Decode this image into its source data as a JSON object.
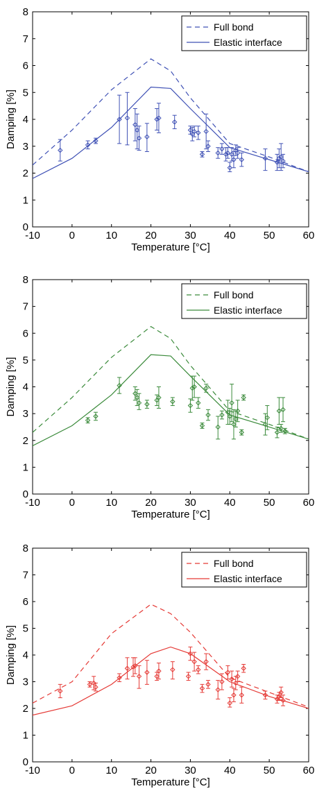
{
  "chart_data": [
    {
      "type": "line",
      "color": "#3f51b5",
      "xlabel": "Temperature [°C]",
      "ylabel": "Damping [%]",
      "xlim": [
        -10,
        60
      ],
      "ylim": [
        0,
        8
      ],
      "xticks": [
        -10,
        0,
        10,
        20,
        30,
        40,
        50,
        60
      ],
      "yticks": [
        0,
        1,
        2,
        3,
        4,
        5,
        6,
        7,
        8
      ],
      "legend_position": "top-right",
      "series": [
        {
          "name": "Full bond",
          "style": "dashed",
          "x": [
            -10,
            0,
            10,
            20,
            25,
            30,
            40,
            50,
            60
          ],
          "y": [
            2.3,
            3.6,
            5.1,
            6.25,
            5.8,
            4.8,
            3.1,
            2.6,
            2.05
          ]
        },
        {
          "name": "Elastic interface",
          "style": "solid",
          "x": [
            -10,
            0,
            10,
            20,
            25,
            30,
            40,
            50,
            60
          ],
          "y": [
            1.8,
            2.55,
            3.7,
            5.2,
            5.15,
            4.4,
            2.95,
            2.5,
            2.05
          ]
        }
      ],
      "measurements": [
        {
          "x": -3,
          "y": 2.85,
          "lo": 2.45,
          "hi": 3.25
        },
        {
          "x": 4,
          "y": 3.05,
          "lo": 2.9,
          "hi": 3.2
        },
        {
          "x": 6,
          "y": 3.2,
          "lo": 3.1,
          "hi": 3.3
        },
        {
          "x": 12,
          "y": 4.0,
          "lo": 3.1,
          "hi": 4.9
        },
        {
          "x": 14,
          "y": 4.05,
          "lo": 3.05,
          "hi": 5.0
        },
        {
          "x": 16,
          "y": 3.8,
          "lo": 3.2,
          "hi": 4.4
        },
        {
          "x": 16.5,
          "y": 3.6,
          "lo": 2.9,
          "hi": 4.2
        },
        {
          "x": 17,
          "y": 3.3,
          "lo": 2.85,
          "hi": 3.75
        },
        {
          "x": 19,
          "y": 3.35,
          "lo": 2.8,
          "hi": 3.85
        },
        {
          "x": 21.5,
          "y": 4.0,
          "lo": 3.6,
          "hi": 4.4
        },
        {
          "x": 22,
          "y": 4.05,
          "lo": 3.5,
          "hi": 4.6
        },
        {
          "x": 26,
          "y": 3.9,
          "lo": 3.65,
          "hi": 4.15
        },
        {
          "x": 30,
          "y": 3.6,
          "lo": 3.45,
          "hi": 3.75
        },
        {
          "x": 30.5,
          "y": 3.45,
          "lo": 3.2,
          "hi": 3.7
        },
        {
          "x": 31,
          "y": 3.55,
          "lo": 3.35,
          "hi": 3.75
        },
        {
          "x": 32,
          "y": 3.5,
          "lo": 3.25,
          "hi": 3.75
        },
        {
          "x": 33,
          "y": 2.7,
          "lo": 2.6,
          "hi": 2.8
        },
        {
          "x": 34,
          "y": 3.55,
          "lo": 2.9,
          "hi": 4.2
        },
        {
          "x": 34.5,
          "y": 3.0,
          "lo": 2.8,
          "hi": 3.2
        },
        {
          "x": 37,
          "y": 2.75,
          "lo": 2.55,
          "hi": 2.95
        },
        {
          "x": 38,
          "y": 2.9,
          "lo": 2.7,
          "hi": 3.1
        },
        {
          "x": 39,
          "y": 2.7,
          "lo": 2.45,
          "hi": 2.95
        },
        {
          "x": 39.5,
          "y": 2.75,
          "lo": 2.55,
          "hi": 2.95
        },
        {
          "x": 40,
          "y": 2.2,
          "lo": 2.05,
          "hi": 2.4
        },
        {
          "x": 40.5,
          "y": 2.7,
          "lo": 2.45,
          "hi": 2.95
        },
        {
          "x": 41,
          "y": 2.5,
          "lo": 2.2,
          "hi": 2.8
        },
        {
          "x": 41.5,
          "y": 2.85,
          "lo": 2.65,
          "hi": 3.05
        },
        {
          "x": 42,
          "y": 2.75,
          "lo": 2.55,
          "hi": 2.95
        },
        {
          "x": 43,
          "y": 2.5,
          "lo": 2.25,
          "hi": 2.75
        },
        {
          "x": 49,
          "y": 2.55,
          "lo": 2.1,
          "hi": 2.9
        },
        {
          "x": 52,
          "y": 2.4,
          "lo": 2.1,
          "hi": 2.7
        },
        {
          "x": 52.5,
          "y": 2.55,
          "lo": 2.2,
          "hi": 2.9
        },
        {
          "x": 53,
          "y": 2.6,
          "lo": 2.1,
          "hi": 3.1
        },
        {
          "x": 53.5,
          "y": 2.45,
          "lo": 2.2,
          "hi": 2.7
        }
      ]
    },
    {
      "type": "line",
      "color": "#3a8a3a",
      "xlabel": "Temperature [°C]",
      "ylabel": "Damping [%]",
      "xlim": [
        -10,
        60
      ],
      "ylim": [
        0,
        8
      ],
      "xticks": [
        -10,
        0,
        10,
        20,
        30,
        40,
        50,
        60
      ],
      "yticks": [
        0,
        1,
        2,
        3,
        4,
        5,
        6,
        7,
        8
      ],
      "legend_position": "top-right",
      "series": [
        {
          "name": "Full bond",
          "style": "dashed",
          "x": [
            -10,
            0,
            10,
            20,
            25,
            30,
            40,
            50,
            60
          ],
          "y": [
            2.3,
            3.6,
            5.1,
            6.25,
            5.8,
            4.8,
            3.1,
            2.6,
            2.05
          ]
        },
        {
          "name": "Elastic interface",
          "style": "solid",
          "x": [
            -10,
            0,
            10,
            20,
            25,
            30,
            40,
            50,
            60
          ],
          "y": [
            1.8,
            2.55,
            3.7,
            5.2,
            5.15,
            4.4,
            2.95,
            2.5,
            2.05
          ]
        }
      ],
      "measurements": [
        {
          "x": 4,
          "y": 2.75,
          "lo": 2.65,
          "hi": 2.85
        },
        {
          "x": 6,
          "y": 2.9,
          "lo": 2.75,
          "hi": 3.05
        },
        {
          "x": 12,
          "y": 4.05,
          "lo": 3.75,
          "hi": 4.35
        },
        {
          "x": 16,
          "y": 3.75,
          "lo": 3.5,
          "hi": 4.0
        },
        {
          "x": 16.5,
          "y": 3.6,
          "lo": 3.3,
          "hi": 3.9
        },
        {
          "x": 17,
          "y": 3.4,
          "lo": 3.15,
          "hi": 3.75
        },
        {
          "x": 19,
          "y": 3.35,
          "lo": 3.2,
          "hi": 3.5
        },
        {
          "x": 21.5,
          "y": 3.5,
          "lo": 3.3,
          "hi": 3.7
        },
        {
          "x": 22,
          "y": 3.6,
          "lo": 3.2,
          "hi": 4.0
        },
        {
          "x": 25.5,
          "y": 3.45,
          "lo": 3.3,
          "hi": 3.6
        },
        {
          "x": 30,
          "y": 3.3,
          "lo": 3.05,
          "hi": 3.55
        },
        {
          "x": 30.5,
          "y": 3.95,
          "lo": 3.5,
          "hi": 4.4
        },
        {
          "x": 31,
          "y": 4.0,
          "lo": 3.6,
          "hi": 4.4
        },
        {
          "x": 32,
          "y": 3.4,
          "lo": 3.2,
          "hi": 3.6
        },
        {
          "x": 33,
          "y": 2.55,
          "lo": 2.45,
          "hi": 2.65
        },
        {
          "x": 34,
          "y": 3.95,
          "lo": 3.8,
          "hi": 4.1
        },
        {
          "x": 34.5,
          "y": 2.95,
          "lo": 2.75,
          "hi": 3.15
        },
        {
          "x": 37,
          "y": 2.5,
          "lo": 2.05,
          "hi": 2.9
        },
        {
          "x": 38,
          "y": 2.95,
          "lo": 2.8,
          "hi": 3.1
        },
        {
          "x": 39.5,
          "y": 3.05,
          "lo": 2.6,
          "hi": 3.5
        },
        {
          "x": 40,
          "y": 2.9,
          "lo": 2.6,
          "hi": 3.2
        },
        {
          "x": 40.5,
          "y": 3.4,
          "lo": 2.7,
          "hi": 4.1
        },
        {
          "x": 41,
          "y": 2.6,
          "lo": 2.05,
          "hi": 3.15
        },
        {
          "x": 41.5,
          "y": 2.8,
          "lo": 2.5,
          "hi": 3.1
        },
        {
          "x": 42,
          "y": 3.1,
          "lo": 2.7,
          "hi": 3.5
        },
        {
          "x": 43,
          "y": 2.3,
          "lo": 2.2,
          "hi": 2.4
        },
        {
          "x": 43.5,
          "y": 3.6,
          "lo": 3.5,
          "hi": 3.7
        },
        {
          "x": 49,
          "y": 2.6,
          "lo": 2.2,
          "hi": 3.0
        },
        {
          "x": 49.5,
          "y": 2.85,
          "lo": 2.4,
          "hi": 3.3
        },
        {
          "x": 52,
          "y": 2.3,
          "lo": 2.1,
          "hi": 2.5
        },
        {
          "x": 52.5,
          "y": 3.1,
          "lo": 2.6,
          "hi": 3.6
        },
        {
          "x": 53,
          "y": 2.45,
          "lo": 2.3,
          "hi": 2.6
        },
        {
          "x": 53.5,
          "y": 3.15,
          "lo": 2.7,
          "hi": 3.6
        },
        {
          "x": 54,
          "y": 2.35,
          "lo": 2.25,
          "hi": 2.45
        }
      ]
    },
    {
      "type": "line",
      "color": "#e53935",
      "xlabel": "Temperature [°C]",
      "ylabel": "Damping [%]",
      "xlim": [
        -10,
        60
      ],
      "ylim": [
        0,
        8
      ],
      "xticks": [
        -10,
        0,
        10,
        20,
        30,
        40,
        50,
        60
      ],
      "yticks": [
        0,
        1,
        2,
        3,
        4,
        5,
        6,
        7,
        8
      ],
      "legend_position": "top-right",
      "series": [
        {
          "name": "Full bond",
          "style": "dashed",
          "x": [
            -10,
            0,
            10,
            20,
            25,
            30,
            40,
            50,
            60
          ],
          "y": [
            2.2,
            3.0,
            4.8,
            5.9,
            5.55,
            4.85,
            3.15,
            2.6,
            2.05
          ]
        },
        {
          "name": "Elastic interface",
          "style": "solid",
          "x": [
            -10,
            0,
            10,
            20,
            25,
            30,
            40,
            50,
            60
          ],
          "y": [
            1.75,
            2.1,
            2.9,
            4.05,
            4.3,
            4.05,
            3.0,
            2.45,
            2.0
          ]
        }
      ],
      "measurements": [
        {
          "x": -3,
          "y": 2.65,
          "lo": 2.4,
          "hi": 2.9
        },
        {
          "x": 4.5,
          "y": 2.9,
          "lo": 2.8,
          "hi": 3.0
        },
        {
          "x": 5.5,
          "y": 2.95,
          "lo": 2.7,
          "hi": 3.2
        },
        {
          "x": 6,
          "y": 2.8,
          "lo": 2.65,
          "hi": 2.95
        },
        {
          "x": 12,
          "y": 3.15,
          "lo": 3.0,
          "hi": 3.3
        },
        {
          "x": 14,
          "y": 3.5,
          "lo": 3.1,
          "hi": 3.9
        },
        {
          "x": 15.5,
          "y": 3.55,
          "lo": 3.2,
          "hi": 3.9
        },
        {
          "x": 16,
          "y": 3.6,
          "lo": 3.3,
          "hi": 3.9
        },
        {
          "x": 17,
          "y": 3.2,
          "lo": 2.75,
          "hi": 3.6
        },
        {
          "x": 19,
          "y": 3.35,
          "lo": 2.9,
          "hi": 3.8
        },
        {
          "x": 21.5,
          "y": 3.2,
          "lo": 3.05,
          "hi": 3.35
        },
        {
          "x": 22,
          "y": 3.4,
          "lo": 3.1,
          "hi": 3.7
        },
        {
          "x": 25.5,
          "y": 3.45,
          "lo": 3.1,
          "hi": 3.75
        },
        {
          "x": 29.5,
          "y": 3.2,
          "lo": 3.05,
          "hi": 3.35
        },
        {
          "x": 30,
          "y": 4.05,
          "lo": 3.8,
          "hi": 4.3
        },
        {
          "x": 31,
          "y": 3.75,
          "lo": 3.4,
          "hi": 4.1
        },
        {
          "x": 32,
          "y": 3.45,
          "lo": 3.3,
          "hi": 3.6
        },
        {
          "x": 33,
          "y": 2.75,
          "lo": 2.6,
          "hi": 2.9
        },
        {
          "x": 34,
          "y": 3.75,
          "lo": 3.45,
          "hi": 4.05
        },
        {
          "x": 34.5,
          "y": 2.9,
          "lo": 2.75,
          "hi": 3.05
        },
        {
          "x": 37,
          "y": 2.7,
          "lo": 2.35,
          "hi": 3.05
        },
        {
          "x": 38,
          "y": 3.0,
          "lo": 2.7,
          "hi": 3.3
        },
        {
          "x": 39.5,
          "y": 3.35,
          "lo": 3.1,
          "hi": 3.6
        },
        {
          "x": 40,
          "y": 2.2,
          "lo": 2.05,
          "hi": 2.4
        },
        {
          "x": 40.5,
          "y": 3.1,
          "lo": 2.8,
          "hi": 3.4
        },
        {
          "x": 41,
          "y": 2.5,
          "lo": 2.25,
          "hi": 2.75
        },
        {
          "x": 41.5,
          "y": 2.95,
          "lo": 2.7,
          "hi": 3.2
        },
        {
          "x": 42,
          "y": 3.2,
          "lo": 3.0,
          "hi": 3.4
        },
        {
          "x": 43,
          "y": 2.5,
          "lo": 2.2,
          "hi": 2.8
        },
        {
          "x": 43.5,
          "y": 3.5,
          "lo": 3.35,
          "hi": 3.65
        },
        {
          "x": 49,
          "y": 2.5,
          "lo": 2.35,
          "hi": 2.65
        },
        {
          "x": 52,
          "y": 2.35,
          "lo": 2.2,
          "hi": 2.5
        },
        {
          "x": 52.5,
          "y": 2.45,
          "lo": 2.3,
          "hi": 2.6
        },
        {
          "x": 53,
          "y": 2.6,
          "lo": 2.4,
          "hi": 2.8
        },
        {
          "x": 53.5,
          "y": 2.3,
          "lo": 2.1,
          "hi": 2.5
        }
      ]
    }
  ]
}
